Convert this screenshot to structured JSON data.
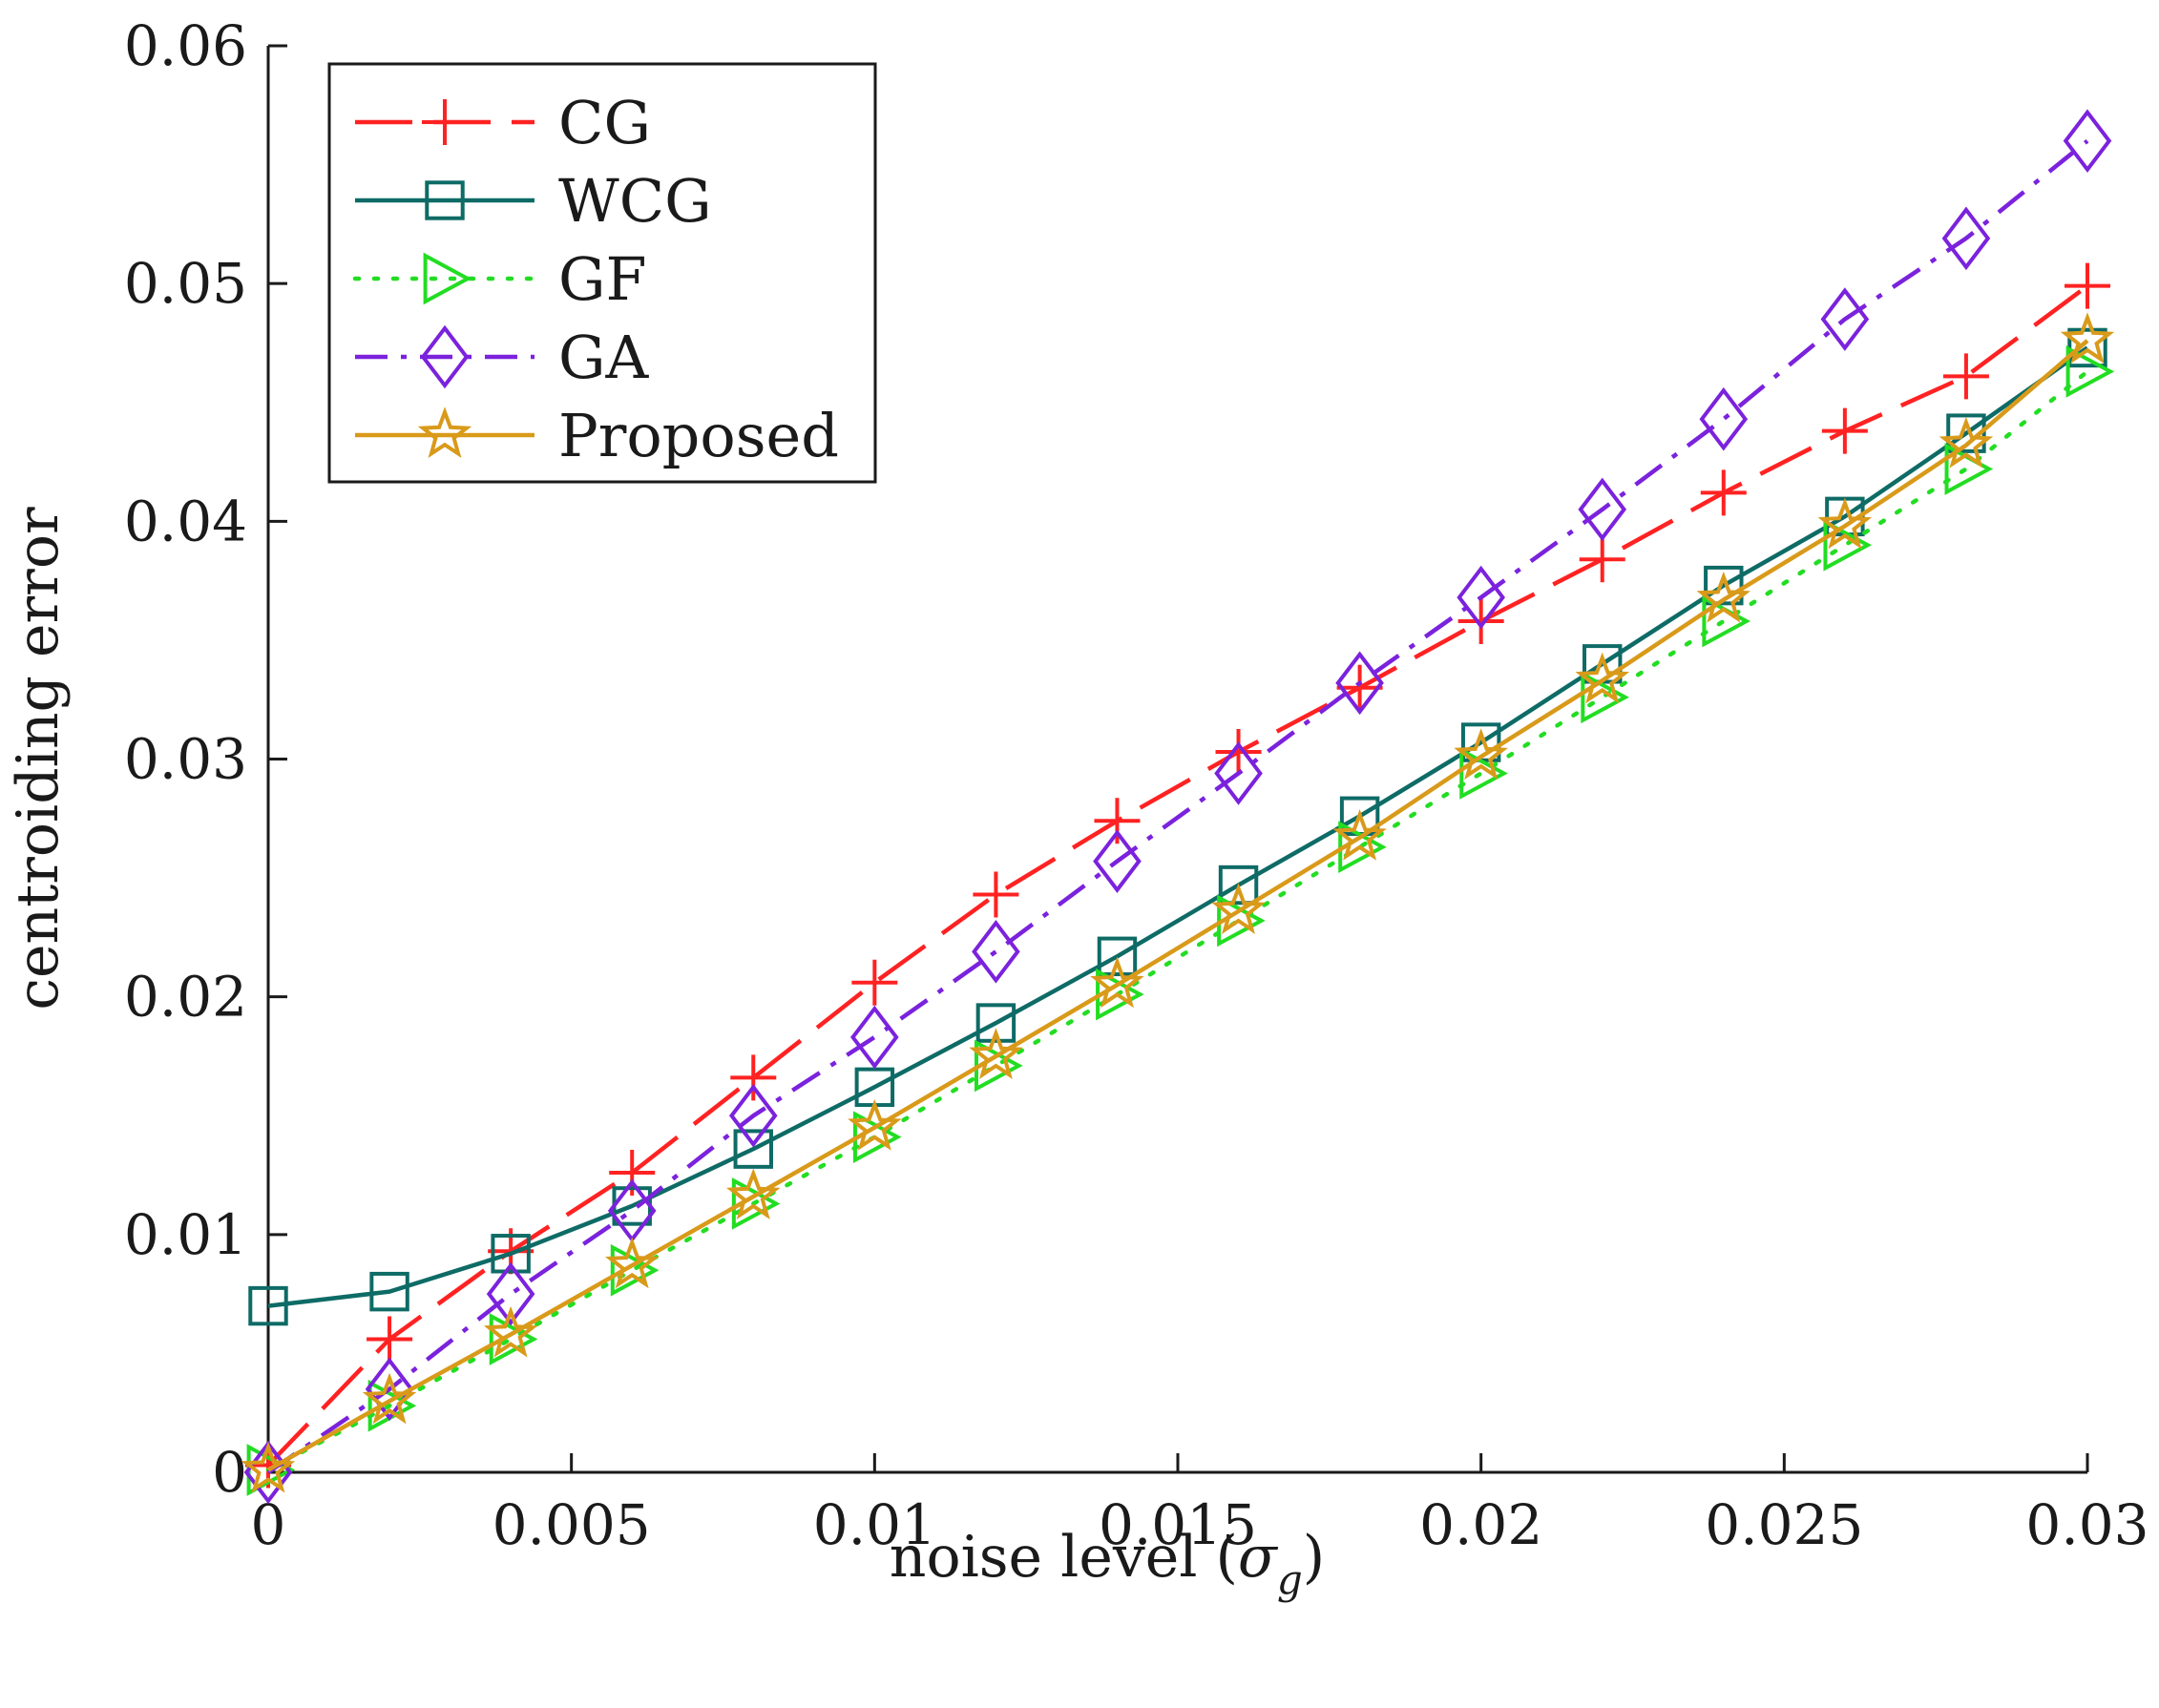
{
  "chart_data": {
    "type": "line",
    "title": "",
    "xlabel": "noise level (",
    "xlabel_symbol": "σ",
    "xlabel_subscript": "g",
    "xlabel_close": ")",
    "ylabel": "centroiding error",
    "xlim": [
      0,
      0.03
    ],
    "ylim": [
      0,
      0.06
    ],
    "x_ticks": [
      0,
      0.005,
      0.01,
      0.015,
      0.02,
      0.025,
      0.03
    ],
    "x_tick_labels": [
      "0",
      "0.005",
      "0.01",
      "0.015",
      "0.02",
      "0.025",
      "0.03"
    ],
    "y_ticks": [
      0,
      0.01,
      0.02,
      0.03,
      0.04,
      0.05,
      0.06
    ],
    "y_tick_labels": [
      "0",
      "0.01",
      "0.02",
      "0.03",
      "0.04",
      "0.05",
      "0.06"
    ],
    "grid": false,
    "legend_position": "top-left",
    "x": [
      0,
      0.002,
      0.004,
      0.006,
      0.008,
      0.01,
      0.012,
      0.014,
      0.016,
      0.018,
      0.02,
      0.022,
      0.024,
      0.026,
      0.028,
      0.03
    ],
    "series": [
      {
        "name": "CG",
        "color": "#ff2222",
        "marker": "plus",
        "line": "longdash",
        "values": [
          0.0003,
          0.0056,
          0.0093,
          0.0126,
          0.0166,
          0.0206,
          0.0243,
          0.0274,
          0.0303,
          0.033,
          0.0358,
          0.0384,
          0.0412,
          0.0438,
          0.0461,
          0.0499
        ]
      },
      {
        "name": "WCG",
        "color": "#0e6b66",
        "marker": "square",
        "line": "solid",
        "values": [
          0.007,
          0.0076,
          0.0092,
          0.0112,
          0.0136,
          0.0162,
          0.0189,
          0.0217,
          0.0247,
          0.0276,
          0.0307,
          0.034,
          0.0373,
          0.0402,
          0.0437,
          0.0473
        ]
      },
      {
        "name": "GF",
        "color": "#22dd22",
        "marker": "triangle-right",
        "line": "dotted",
        "values": [
          0.0001,
          0.0028,
          0.0056,
          0.0085,
          0.0113,
          0.0141,
          0.0171,
          0.0201,
          0.0232,
          0.0263,
          0.0294,
          0.0326,
          0.0358,
          0.039,
          0.0422,
          0.0463
        ]
      },
      {
        "name": "GA",
        "color": "#7b22dd",
        "marker": "diamond",
        "line": "dashdot",
        "values": [
          0.0,
          0.0035,
          0.0075,
          0.011,
          0.015,
          0.0183,
          0.0219,
          0.0257,
          0.0294,
          0.0332,
          0.0368,
          0.0405,
          0.0443,
          0.0485,
          0.0519,
          0.056
        ]
      },
      {
        "name": "Proposed",
        "color": "#d99a1a",
        "marker": "star",
        "line": "solid",
        "values": [
          0.0001,
          0.003,
          0.0058,
          0.0087,
          0.0116,
          0.0145,
          0.0175,
          0.0205,
          0.0236,
          0.0267,
          0.0301,
          0.0333,
          0.0367,
          0.0398,
          0.0432,
          0.0476
        ]
      }
    ]
  }
}
